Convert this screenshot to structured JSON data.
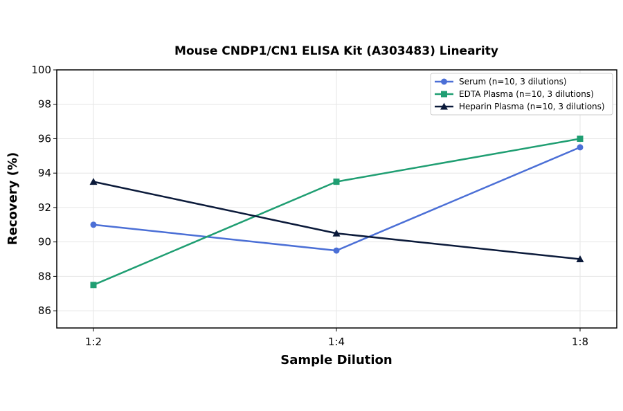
{
  "chart_data": {
    "type": "line",
    "title": "Mouse CNDP1/CN1 ELISA Kit (A303483) Linearity",
    "xlabel": "Sample Dilution",
    "ylabel": "Recovery (%)",
    "categories": [
      "1:2",
      "1:4",
      "1:8"
    ],
    "ylim": [
      85,
      100
    ],
    "yticks": [
      86,
      88,
      90,
      92,
      94,
      96,
      98,
      100
    ],
    "grid": true,
    "legend_position": "top-right",
    "series": [
      {
        "name": "Serum (n=10, 3 dilutions)",
        "values": [
          91.0,
          89.5,
          95.5
        ],
        "color": "#4b6fd6",
        "marker": "circle"
      },
      {
        "name": "EDTA Plasma (n=10, 3 dilutions)",
        "values": [
          87.5,
          93.5,
          96.0
        ],
        "color": "#1f9e72",
        "marker": "square"
      },
      {
        "name": "Heparin Plasma (n=10, 3 dilutions)",
        "values": [
          93.5,
          90.5,
          89.0
        ],
        "color": "#0b1a3a",
        "marker": "triangle"
      }
    ]
  }
}
